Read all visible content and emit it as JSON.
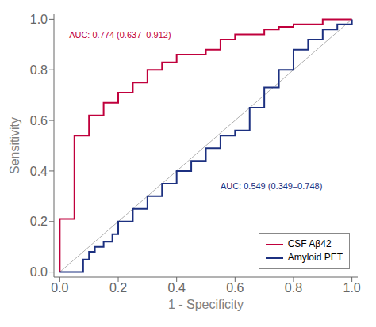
{
  "chart_data": {
    "type": "line",
    "xlabel": "1 - Specificity",
    "ylabel": "Sensitivity",
    "xlim": [
      -0.02,
      1.02
    ],
    "ylim": [
      -0.02,
      1.02
    ],
    "xticks": [
      {
        "value": 0.0,
        "label": "0.0"
      },
      0.2,
      0.4,
      0.6,
      0.8,
      {
        "value": 1.0,
        "label": "1.0"
      }
    ],
    "yticks": [
      {
        "value": 0.0,
        "label": "0.0"
      },
      0.2,
      0.4,
      0.6,
      0.8,
      {
        "value": 1.0,
        "label": "1.0"
      }
    ],
    "grid": false,
    "legend": "lower right",
    "series": [
      {
        "type": "line",
        "color": "#B0B0B0",
        "x": [
          0,
          1
        ],
        "values": [
          0,
          1
        ]
      },
      {
        "name": "CSF Aβ42",
        "type": "step",
        "color": "#C0003C",
        "x": [
          0.0,
          0.0,
          0.05,
          0.1,
          0.15,
          0.2,
          0.25,
          0.3,
          0.35,
          0.4,
          0.5,
          0.55,
          0.6,
          0.7,
          0.75,
          0.8,
          0.9,
          0.95,
          1.0
        ],
        "values": [
          0.0,
          0.21,
          0.54,
          0.62,
          0.67,
          0.71,
          0.75,
          0.8,
          0.83,
          0.86,
          0.88,
          0.92,
          0.94,
          0.96,
          0.97,
          0.98,
          1.0,
          1.0,
          1.0
        ]
      },
      {
        "name": "Amyloid PET",
        "type": "step",
        "color": "#1C3080",
        "x": [
          0.0,
          0.05,
          0.08,
          0.1,
          0.12,
          0.15,
          0.18,
          0.2,
          0.25,
          0.3,
          0.35,
          0.4,
          0.45,
          0.5,
          0.55,
          0.6,
          0.65,
          0.7,
          0.75,
          0.8,
          0.85,
          0.9,
          0.95,
          1.0
        ],
        "values": [
          0.0,
          0.0,
          0.05,
          0.08,
          0.1,
          0.12,
          0.15,
          0.2,
          0.25,
          0.3,
          0.35,
          0.4,
          0.44,
          0.49,
          0.54,
          0.56,
          0.65,
          0.73,
          0.8,
          0.88,
          0.92,
          0.96,
          0.98,
          1.0
        ]
      }
    ],
    "annotations": [
      {
        "text": "AUC: 0.774 (0.637–0.912)",
        "color": "#C0003C"
      },
      {
        "text": "AUC: 0.549 (0.349–0.748)",
        "color": "#1C3080"
      }
    ]
  }
}
